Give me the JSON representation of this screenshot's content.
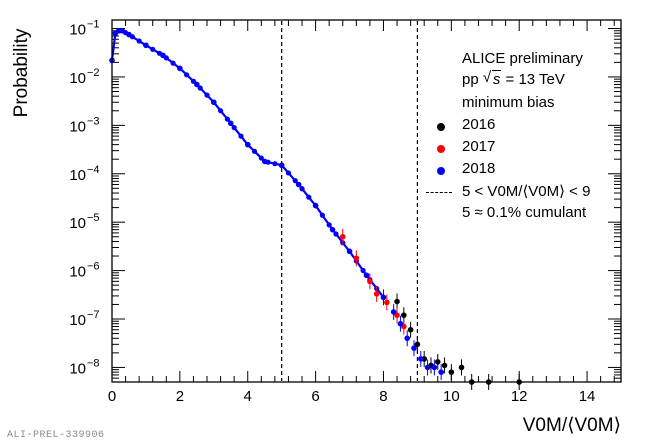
{
  "chart_data": {
    "type": "scatter",
    "xlabel": "V0M/⟨V0M⟩",
    "ylabel": "Probability",
    "xlim": [
      0,
      15
    ],
    "ylim": [
      5e-09,
      0.15
    ],
    "yscale": "log",
    "x_ticks": [
      0,
      2,
      4,
      6,
      8,
      10,
      12,
      14
    ],
    "y_ticks": [
      {
        "value": 1e-08,
        "label": "10^-8"
      },
      {
        "value": 1e-07,
        "label": "10^-7"
      },
      {
        "value": 1e-06,
        "label": "10^-6"
      },
      {
        "value": 1e-05,
        "label": "10^-5"
      },
      {
        "value": 0.0001,
        "label": "10^-4"
      },
      {
        "value": 0.001,
        "label": "10^-3"
      },
      {
        "value": 0.01,
        "label": "10^-2"
      },
      {
        "value": 0.1,
        "label": "10^-1"
      }
    ],
    "vlines": [
      {
        "x": 5,
        "style": "dashed"
      },
      {
        "x": 9,
        "style": "dashed"
      }
    ],
    "series": [
      {
        "name": "2016",
        "color": "#000000",
        "x": [
          8.4,
          8.6,
          8.8,
          9.0,
          9.2,
          9.4,
          9.6,
          9.8,
          10.0,
          10.3,
          10.6,
          11.1,
          12.0
        ],
        "y": [
          2.3e-07,
          1.2e-07,
          6e-08,
          3e-08,
          1.5e-08,
          1.1e-08,
          1.3e-08,
          1.1e-08,
          8e-09,
          1e-08,
          5e-09,
          5e-09,
          5e-09
        ]
      },
      {
        "name": "2017",
        "color": "#ff0000",
        "x": [
          6.8,
          7.2,
          7.6,
          7.8,
          8.1,
          8.4,
          8.6
        ],
        "y": [
          5e-06,
          1.8e-06,
          6e-07,
          3.3e-07,
          2.2e-07,
          1.2e-07,
          7e-08
        ]
      },
      {
        "name": "2018",
        "color": "#0000ff",
        "x": [
          0.0,
          0.1,
          0.2,
          0.3,
          0.5,
          1.0,
          1.5,
          2.0,
          2.5,
          3.0,
          3.5,
          4.0,
          4.5,
          5.0,
          5.5,
          6.0,
          6.5,
          7.0,
          7.5,
          8.0,
          8.3,
          8.5,
          8.7,
          8.9,
          9.1,
          9.3,
          9.5,
          9.7
        ],
        "y": [
          0.022,
          0.08,
          0.09,
          0.09,
          0.075,
          0.045,
          0.028,
          0.015,
          0.007,
          0.003,
          0.0011,
          0.0004,
          0.00018,
          0.00015,
          6e-05,
          2.2e-05,
          7e-06,
          2.5e-06,
          8e-07,
          2.8e-07,
          1.4e-07,
          8e-08,
          4e-08,
          2.5e-08,
          1.5e-08,
          1e-08,
          1e-08,
          8e-09
        ]
      }
    ],
    "legend": {
      "placement": "top-right",
      "header": [
        "ALICE preliminary",
        "minimum bias"
      ],
      "energy_prefix": "pp",
      "energy_symbol": "s",
      "energy_suffix": "= 13 TeV",
      "entries": [
        "2016",
        "2017",
        "2018"
      ],
      "range_line": "5 < V0M/⟨V0M⟩ < 9",
      "cumulant_line": "5 ≈ 0.1% cumulant"
    }
  },
  "colors": {
    "s2016": "#000000",
    "s2017": "#ff0000",
    "s2018": "#0000ff"
  },
  "footer": {
    "tag": "ALI-PREL-339906"
  }
}
